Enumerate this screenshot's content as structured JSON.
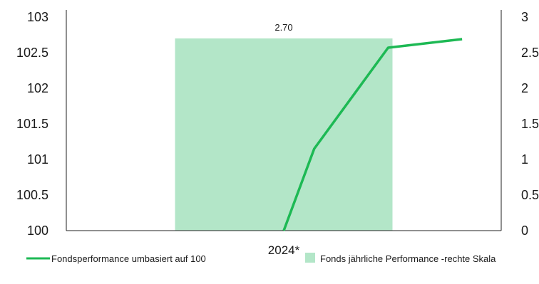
{
  "chart_data": {
    "type": "bar+line",
    "categories": [
      "2024*"
    ],
    "bar_series": {
      "name": "Fonds jährliche Performance -rechte Skala",
      "axis": "right",
      "values": [
        2.7
      ],
      "data_labels": [
        "2.70"
      ],
      "color": "#b3e6c8"
    },
    "line_series": {
      "name": "Fondsperformance umbasiert auf 100",
      "axis": "left",
      "x": [
        0,
        0.07,
        0.24,
        0.41
      ],
      "values": [
        100.0,
        101.15,
        102.57,
        102.69
      ],
      "color": "#1db954"
    },
    "y_left": {
      "ylim": [
        100,
        103
      ],
      "ticks": [
        "100",
        "100.5",
        "101",
        "101.5",
        "102",
        "102.5",
        "103"
      ]
    },
    "y_right": {
      "ylim": [
        0,
        3
      ],
      "ticks": [
        "0",
        "0.5",
        "1",
        "1.5",
        "2",
        "2.5",
        "3"
      ]
    },
    "grid": false,
    "legend_position": "bottom"
  }
}
